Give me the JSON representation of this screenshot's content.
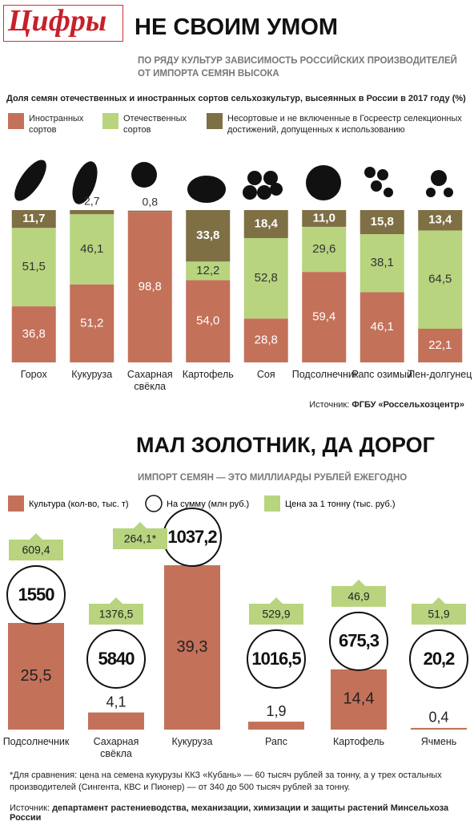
{
  "header": {
    "logo": "Цифры",
    "title": "НЕ СВОИМ УМОМ",
    "subtitle": "ПО РЯДУ КУЛЬТУР ЗАВИСИМОСТЬ РОССИЙСКИХ ПРОИЗВОДИТЕЛЕЙ ОТ ИМПОРТА СЕМЯН ВЫСОКА"
  },
  "chart_data": [
    {
      "type": "stacked-bar",
      "title": "Доля семян отечественных и иностранных сортов сельхозкультур, высеянных в России в 2017 году (%)",
      "categories": [
        "Горох",
        "Кукуруза",
        "Сахарная свёкла",
        "Картофель",
        "Соя",
        "Подсолнечник",
        "Рапс озимый",
        "Лен-долгунец"
      ],
      "ylim": [
        0,
        100
      ],
      "series": [
        {
          "name": "Иностранных сортов",
          "color": "#c4715a",
          "values": [
            36.8,
            51.2,
            98.8,
            54.0,
            28.8,
            59.4,
            46.1,
            22.1
          ],
          "value_labels": [
            "36,8",
            "51,2",
            "98,8",
            "54,0",
            "28,8",
            "59,4",
            "46,1",
            "22,1"
          ]
        },
        {
          "name": "Отечественных сортов",
          "color": "#b8d47f",
          "values": [
            51.5,
            46.1,
            null,
            12.2,
            52.8,
            29.6,
            38.1,
            64.5
          ],
          "value_labels": [
            "51,5",
            "46,1",
            null,
            "12,2",
            "52,8",
            "29,6",
            "38,1",
            "64,5"
          ]
        },
        {
          "name": "Несортовые и не включенные в Госреестр селекционных достижений, допущенных к использованию",
          "color": "#7f6f45",
          "values": [
            11.7,
            2.7,
            0.8,
            33.8,
            18.4,
            11.0,
            15.8,
            13.4
          ],
          "value_labels": [
            "11,7",
            "2,7",
            "0,8",
            "33,8",
            "18,4",
            "11,0",
            "15,8",
            "13,4"
          ]
        }
      ],
      "source_label": "Источник:",
      "source": "ФГБУ «Россельхозцентр»"
    },
    {
      "type": "bar-circle-tag",
      "title": "МАЛ ЗОЛОТНИК, ДА ДОРОГ",
      "subtitle": "ИМПОРТ СЕМЯН — ЭТО МИЛЛИАРДЫ РУБЛЕЙ ЕЖЕГОДНО",
      "categories": [
        "Подсолнечник",
        "Сахарная свёкла",
        "Кукуруза",
        "Рапс",
        "Картофель",
        "Ячмень"
      ],
      "series": [
        {
          "name": "Культура (кол-во, тыс. т)",
          "color": "#c4715a",
          "values": [
            25.5,
            4.1,
            39.3,
            1.9,
            14.4,
            0.4
          ],
          "value_labels": [
            "25,5",
            "4,1",
            "39,3",
            "1,9",
            "14,4",
            "0,4"
          ]
        },
        {
          "name": "На сумму  (млн руб.)",
          "color": "#ffffff",
          "values": [
            1550,
            5840,
            1037.2,
            1016.5,
            675.3,
            20.2
          ],
          "value_labels": [
            "1550",
            "5840",
            "1037,2",
            "1016,5",
            "675,3",
            "20,2"
          ]
        },
        {
          "name": "Цена за 1 тонну (тыс. руб.)",
          "color": "#b8d47f",
          "values": [
            609.4,
            1376.5,
            264.1,
            529.9,
            46.9,
            51.9
          ],
          "value_labels": [
            "609,4",
            "1376,5",
            "264,1*",
            "529,9",
            "46,9",
            "51,9"
          ]
        }
      ],
      "footnote": "*Для сравнения: цена на семена кукурузы ККЗ «Кубань» — 60 тысяч рублей за тонну, а у трех остальных производителей (Сингента, КВС и Пионер) — от 340 до 500 тысяч рублей за тонну.",
      "source_label": "Источник:",
      "source": "департамент растениеводства, механизации, химизации и защиты растений Минсельхоза России"
    }
  ]
}
